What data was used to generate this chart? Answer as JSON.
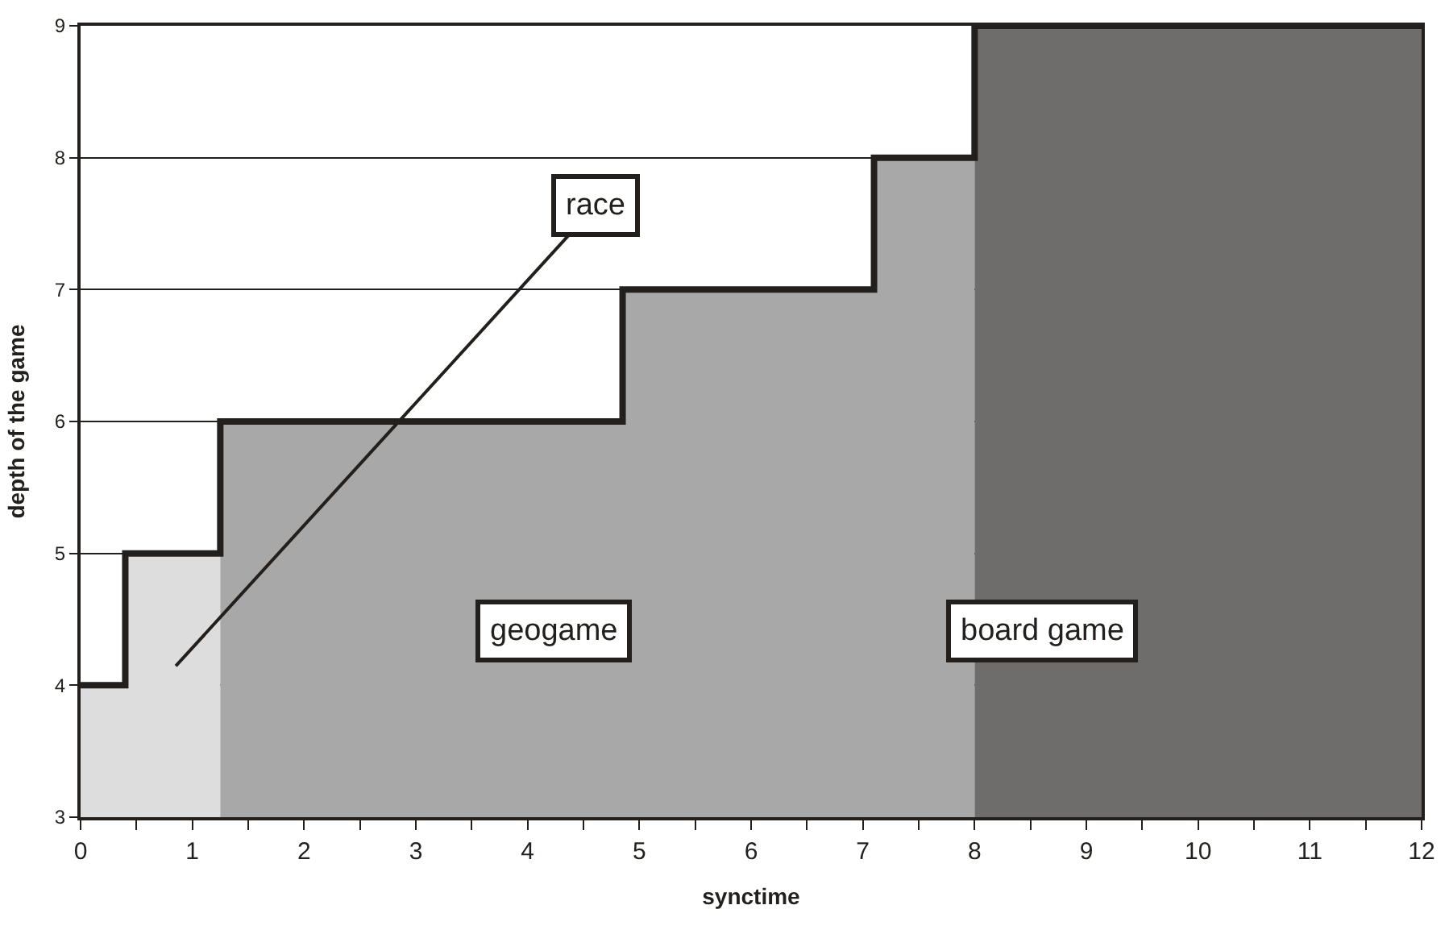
{
  "chart_data": {
    "type": "step",
    "xlabel": "synctime",
    "ylabel": "depth of the game",
    "xlim": [
      0,
      12
    ],
    "xticks": [
      0,
      1,
      2,
      3,
      4,
      5,
      6,
      7,
      8,
      9,
      10,
      11,
      12
    ],
    "ylim": [
      3,
      9
    ],
    "yticks": [
      3,
      4,
      5,
      6,
      7,
      8,
      9
    ],
    "grid": "y",
    "series": [
      {
        "type": "area",
        "color": "#dddddd",
        "x": [
          0,
          0.4,
          0.4,
          1.25
        ],
        "values": [
          4,
          4,
          5,
          5
        ]
      },
      {
        "type": "area",
        "color": "#a8a8a8",
        "x": [
          1.25,
          4.85,
          4.85,
          7.1,
          7.1,
          8.0
        ],
        "values": [
          6,
          6,
          7,
          7,
          8,
          8
        ]
      },
      {
        "type": "area",
        "color": "#6e6d6b",
        "x": [
          8.0,
          12
        ],
        "values": [
          9,
          9
        ]
      },
      {
        "color": "#231f1c",
        "x": [
          0,
          0.4,
          1.25,
          4.85,
          7.1,
          8.0,
          12
        ],
        "values": [
          4,
          5,
          6,
          7,
          8,
          9,
          9
        ]
      }
    ],
    "annotations": [
      "race",
      "geogame",
      "board game"
    ]
  }
}
